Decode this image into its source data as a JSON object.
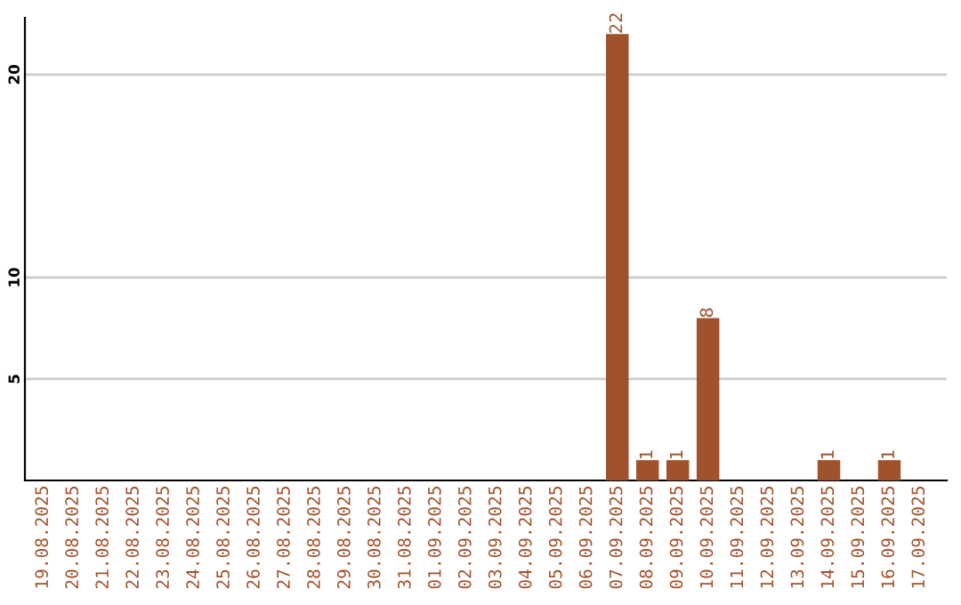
{
  "chart_data": {
    "type": "bar",
    "categories": [
      "19.08.2025",
      "20.08.2025",
      "21.08.2025",
      "22.08.2025",
      "23.08.2025",
      "24.08.2025",
      "25.08.2025",
      "26.08.2025",
      "27.08.2025",
      "28.08.2025",
      "29.08.2025",
      "30.08.2025",
      "31.08.2025",
      "01.09.2025",
      "02.09.2025",
      "03.09.2025",
      "04.09.2025",
      "05.09.2025",
      "06.09.2025",
      "07.09.2025",
      "08.09.2025",
      "09.09.2025",
      "10.09.2025",
      "11.09.2025",
      "12.09.2025",
      "13.09.2025",
      "14.09.2025",
      "15.09.2025",
      "16.09.2025",
      "17.09.2025"
    ],
    "values": [
      0,
      0,
      0,
      0,
      0,
      0,
      0,
      0,
      0,
      0,
      0,
      0,
      0,
      0,
      0,
      0,
      0,
      0,
      0,
      22,
      1,
      1,
      8,
      0,
      0,
      0,
      1,
      0,
      1,
      0
    ],
    "value_labels": [
      null,
      null,
      null,
      null,
      null,
      null,
      null,
      null,
      null,
      null,
      null,
      null,
      null,
      null,
      null,
      null,
      null,
      null,
      null,
      "22",
      "1",
      "1",
      "8",
      null,
      null,
      null,
      "1",
      null,
      "1",
      null
    ],
    "color": "#a0522d",
    "ylim": [
      0,
      22.8
    ],
    "yticks": [
      5,
      10,
      20
    ],
    "grid": "y"
  }
}
